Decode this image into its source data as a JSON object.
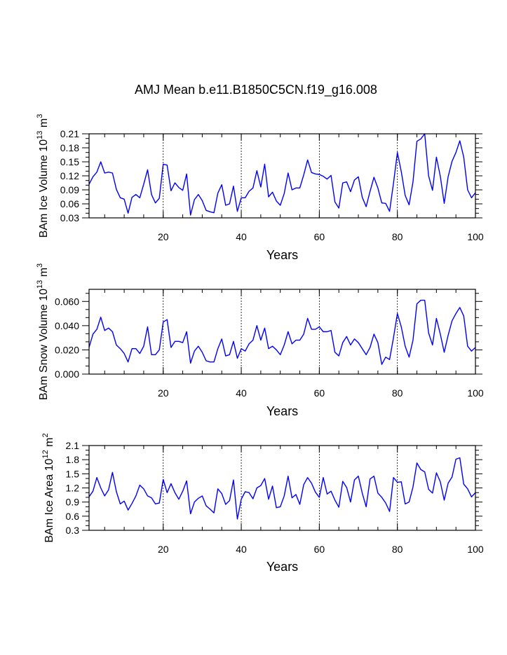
{
  "figure_title": "AMJ Mean b.e11.B1850C5CN.f19_g16.008",
  "colors": {
    "line": "#0000ff",
    "axis": "#000000",
    "grid": "#000000",
    "background": "#ffffff"
  },
  "chart_data": [
    {
      "type": "line",
      "ylabel_main": "BAm Ice Volume 10",
      "ylabel_exp": "13",
      "ylabel_unit": " m",
      "ylabel_unit_exp": "3",
      "xlabel": "Years",
      "xlim": [
        1,
        100
      ],
      "ylim": [
        0.03,
        0.21
      ],
      "xticks": [
        20,
        40,
        60,
        80,
        100
      ],
      "xtick_labels": [
        "20",
        "40",
        "60",
        "80",
        "100"
      ],
      "yticks": [
        0.03,
        0.06,
        0.09,
        0.12,
        0.15,
        0.18,
        0.21
      ],
      "ytick_labels": [
        "0.03",
        "0.06",
        "0.09",
        "0.12",
        "0.15",
        "0.18",
        "0.21"
      ],
      "vgrid": [
        20,
        40,
        60,
        80
      ],
      "series": [
        {
          "name": "BAm Ice Volume",
          "values": [
            0.102,
            0.118,
            0.128,
            0.15,
            0.126,
            0.128,
            0.126,
            0.091,
            0.073,
            0.07,
            0.04,
            0.074,
            0.08,
            0.073,
            0.102,
            0.133,
            0.08,
            0.062,
            0.072,
            0.145,
            0.143,
            0.088,
            0.105,
            0.095,
            0.089,
            0.124,
            0.036,
            0.069,
            0.08,
            0.067,
            0.046,
            0.043,
            0.041,
            0.083,
            0.101,
            0.057,
            0.06,
            0.098,
            0.044,
            0.073,
            0.073,
            0.087,
            0.094,
            0.131,
            0.096,
            0.145,
            0.075,
            0.085,
            0.066,
            0.057,
            0.082,
            0.126,
            0.09,
            0.094,
            0.094,
            0.122,
            0.154,
            0.127,
            0.124,
            0.123,
            0.119,
            0.113,
            0.121,
            0.064,
            0.051,
            0.105,
            0.107,
            0.086,
            0.111,
            0.118,
            0.074,
            0.054,
            0.087,
            0.117,
            0.094,
            0.062,
            0.061,
            0.044,
            0.104,
            0.17,
            0.129,
            0.078,
            0.058,
            0.107,
            0.194,
            0.199,
            0.21,
            0.12,
            0.089,
            0.16,
            0.119,
            0.061,
            0.118,
            0.151,
            0.17,
            0.195,
            0.16,
            0.09,
            0.073,
            0.084
          ]
        }
      ]
    },
    {
      "type": "line",
      "ylabel_main": "BAm Snow Volume 10",
      "ylabel_exp": "13",
      "ylabel_unit": " m",
      "ylabel_unit_exp": "3",
      "xlabel": "Years",
      "xlim": [
        1,
        100
      ],
      "ylim": [
        0.0,
        0.07
      ],
      "xticks": [
        20,
        40,
        60,
        80,
        100
      ],
      "xtick_labels": [
        "20",
        "40",
        "60",
        "80",
        "100"
      ],
      "yticks": [
        0.0,
        0.02,
        0.04,
        0.06
      ],
      "ytick_labels": [
        "0.000",
        "0.020",
        "0.040",
        "0.060"
      ],
      "vgrid": [
        20,
        40,
        60,
        80
      ],
      "series": [
        {
          "name": "BAm Snow Volume",
          "values": [
            0.022,
            0.033,
            0.037,
            0.047,
            0.036,
            0.038,
            0.035,
            0.024,
            0.021,
            0.017,
            0.01,
            0.021,
            0.021,
            0.017,
            0.023,
            0.039,
            0.016,
            0.016,
            0.02,
            0.043,
            0.045,
            0.022,
            0.027,
            0.027,
            0.026,
            0.035,
            0.009,
            0.019,
            0.023,
            0.018,
            0.011,
            0.01,
            0.01,
            0.021,
            0.029,
            0.015,
            0.016,
            0.027,
            0.013,
            0.021,
            0.019,
            0.025,
            0.028,
            0.04,
            0.028,
            0.038,
            0.021,
            0.023,
            0.02,
            0.016,
            0.024,
            0.035,
            0.025,
            0.028,
            0.028,
            0.033,
            0.046,
            0.037,
            0.037,
            0.039,
            0.035,
            0.035,
            0.036,
            0.018,
            0.015,
            0.026,
            0.031,
            0.024,
            0.029,
            0.026,
            0.021,
            0.016,
            0.022,
            0.033,
            0.026,
            0.008,
            0.014,
            0.012,
            0.03,
            0.05,
            0.039,
            0.023,
            0.014,
            0.028,
            0.058,
            0.061,
            0.061,
            0.034,
            0.024,
            0.046,
            0.033,
            0.018,
            0.032,
            0.044,
            0.05,
            0.055,
            0.048,
            0.023,
            0.019,
            0.022
          ]
        }
      ]
    },
    {
      "type": "line",
      "ylabel_main": "BAm Ice Area 10",
      "ylabel_exp": "12",
      "ylabel_unit": " m",
      "ylabel_unit_exp": "2",
      "xlabel": "Years",
      "xlim": [
        1,
        100
      ],
      "ylim": [
        0.3,
        2.1
      ],
      "xticks": [
        20,
        40,
        60,
        80,
        100
      ],
      "xtick_labels": [
        "20",
        "40",
        "60",
        "80",
        "100"
      ],
      "yticks": [
        0.3,
        0.6,
        0.9,
        1.2,
        1.5,
        1.8,
        2.1
      ],
      "ytick_labels": [
        "0.3",
        "0.6",
        "0.9",
        "1.2",
        "1.5",
        "1.8",
        "2.1"
      ],
      "vgrid": [
        20,
        40,
        60,
        80
      ],
      "series": [
        {
          "name": "BAm Ice Area",
          "values": [
            1.01,
            1.13,
            1.42,
            1.2,
            1.03,
            1.16,
            1.53,
            1.12,
            0.86,
            0.92,
            0.73,
            0.87,
            1.03,
            1.26,
            1.18,
            1.03,
            0.99,
            0.86,
            0.88,
            1.38,
            1.1,
            1.29,
            1.1,
            0.96,
            1.13,
            1.35,
            0.65,
            0.9,
            0.98,
            1.03,
            0.82,
            0.75,
            0.67,
            1.18,
            1.08,
            0.85,
            0.93,
            1.37,
            0.54,
            0.96,
            1.12,
            1.1,
            0.97,
            1.2,
            1.25,
            1.4,
            0.96,
            1.24,
            0.78,
            0.8,
            1.03,
            1.45,
            0.99,
            1.06,
            0.85,
            1.27,
            1.42,
            1.3,
            1.11,
            1.0,
            1.42,
            1.07,
            1.13,
            0.94,
            0.79,
            1.34,
            1.21,
            0.9,
            1.37,
            1.45,
            1.09,
            0.8,
            1.39,
            1.45,
            1.09,
            1.0,
            0.88,
            0.7,
            1.42,
            1.32,
            1.33,
            0.86,
            0.9,
            1.22,
            1.73,
            1.59,
            1.54,
            1.17,
            1.09,
            1.52,
            1.33,
            0.94,
            1.3,
            1.43,
            1.81,
            1.84,
            1.28,
            1.18,
            1.01,
            1.1
          ]
        }
      ]
    }
  ]
}
